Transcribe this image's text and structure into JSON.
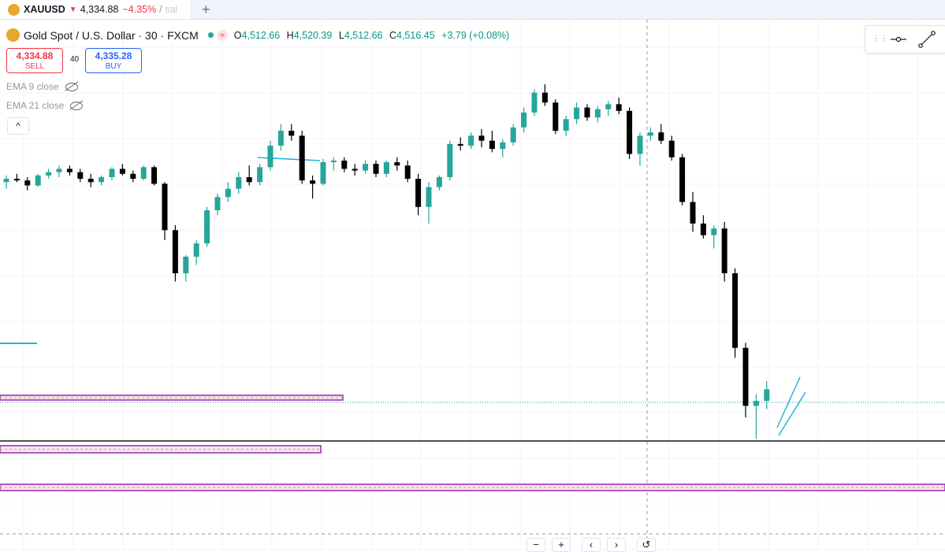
{
  "tab": {
    "symbol": "XAUUSD",
    "direction": "▼",
    "price": "4,334.88",
    "change": "−4.35%",
    "slash": "/",
    "extra": "sal",
    "new_tab": "+"
  },
  "legend": {
    "title": "Gold Spot / U.S. Dollar · 30 · FXCM",
    "status_pill": "≈",
    "open_label": "O",
    "open": "4,512.66",
    "high_label": "H",
    "high": "4,520.39",
    "low_label": "L",
    "low": "4,512.66",
    "close_label": "C",
    "close": "4,516.45",
    "change": "+3.79 (+0.08%)"
  },
  "trade": {
    "sell_price": "4,334.88",
    "sell_label": "SELL",
    "spread": "40",
    "buy_price": "4,335.28",
    "buy_label": "BUY"
  },
  "indicators": [
    {
      "label": "EMA 9 close",
      "icon": "eye-hidden-icon"
    },
    {
      "label": "EMA 21 close",
      "icon": "eye-hidden-icon"
    }
  ],
  "collapse_symbol": "^",
  "navigation": {
    "zoom_out": "−",
    "zoom_in": "+",
    "scroll_left": "‹",
    "scroll_right": "›",
    "reset": "↺"
  },
  "colors": {
    "bull": "#26a69a",
    "bear": "#000000",
    "sell": "#f23645",
    "buy": "#2962ff",
    "zone_border": "#9c27b0",
    "zone_fill": "#f3e5f5",
    "zone_mid": "#ff9800",
    "trendline": "#22b5d8"
  },
  "chart_data": {
    "type": "candlestick",
    "symbol": "XAUUSD",
    "timeframe": "30",
    "candles": [
      [
        4470,
        4478,
        4462,
        4474
      ],
      [
        4474,
        4480,
        4470,
        4472
      ],
      [
        4472,
        4476,
        4460,
        4466
      ],
      [
        4466,
        4480,
        4464,
        4478
      ],
      [
        4478,
        4486,
        4474,
        4482
      ],
      [
        4482,
        4490,
        4476,
        4486
      ],
      [
        4486,
        4490,
        4478,
        4482
      ],
      [
        4482,
        4486,
        4470,
        4474
      ],
      [
        4474,
        4480,
        4464,
        4470
      ],
      [
        4470,
        4478,
        4466,
        4476
      ],
      [
        4476,
        4488,
        4472,
        4486
      ],
      [
        4486,
        4492,
        4478,
        4480
      ],
      [
        4480,
        4484,
        4470,
        4474
      ],
      [
        4474,
        4490,
        4472,
        4488
      ],
      [
        4488,
        4490,
        4466,
        4468
      ],
      [
        4468,
        4470,
        4400,
        4412
      ],
      [
        4412,
        4418,
        4350,
        4360
      ],
      [
        4360,
        4382,
        4350,
        4380
      ],
      [
        4380,
        4400,
        4370,
        4396
      ],
      [
        4396,
        4440,
        4392,
        4436
      ],
      [
        4436,
        4456,
        4430,
        4452
      ],
      [
        4452,
        4470,
        4446,
        4462
      ],
      [
        4462,
        4482,
        4456,
        4476
      ],
      [
        4476,
        4490,
        4466,
        4470
      ],
      [
        4470,
        4492,
        4466,
        4488
      ],
      [
        4488,
        4520,
        4484,
        4514
      ],
      [
        4514,
        4540,
        4508,
        4532
      ],
      [
        4532,
        4540,
        4520,
        4526
      ],
      [
        4526,
        4532,
        4468,
        4472
      ],
      [
        4472,
        4478,
        4450,
        4468
      ],
      [
        4468,
        4498,
        4466,
        4494
      ],
      [
        4494,
        4500,
        4484,
        4496
      ],
      [
        4496,
        4500,
        4482,
        4486
      ],
      [
        4486,
        4492,
        4478,
        4484
      ],
      [
        4484,
        4496,
        4480,
        4492
      ],
      [
        4492,
        4496,
        4476,
        4480
      ],
      [
        4480,
        4496,
        4476,
        4494
      ],
      [
        4494,
        4500,
        4484,
        4490
      ],
      [
        4490,
        4496,
        4470,
        4474
      ],
      [
        4474,
        4480,
        4430,
        4440
      ],
      [
        4440,
        4470,
        4420,
        4464
      ],
      [
        4464,
        4478,
        4460,
        4476
      ],
      [
        4476,
        4520,
        4472,
        4516
      ],
      [
        4516,
        4524,
        4508,
        4514
      ],
      [
        4514,
        4530,
        4510,
        4526
      ],
      [
        4526,
        4534,
        4512,
        4520
      ],
      [
        4520,
        4532,
        4506,
        4510
      ],
      [
        4510,
        4522,
        4500,
        4518
      ],
      [
        4518,
        4540,
        4514,
        4536
      ],
      [
        4536,
        4560,
        4530,
        4554
      ],
      [
        4554,
        4582,
        4550,
        4578
      ],
      [
        4578,
        4588,
        4562,
        4566
      ],
      [
        4566,
        4570,
        4528,
        4532
      ],
      [
        4532,
        4550,
        4526,
        4546
      ],
      [
        4546,
        4566,
        4540,
        4560
      ],
      [
        4560,
        4564,
        4544,
        4548
      ],
      [
        4548,
        4562,
        4542,
        4558
      ],
      [
        4558,
        4568,
        4550,
        4564
      ],
      [
        4564,
        4572,
        4552,
        4556
      ],
      [
        4556,
        4560,
        4498,
        4504
      ],
      [
        4504,
        4530,
        4490,
        4526
      ],
      [
        4526,
        4536,
        4520,
        4530
      ],
      [
        4530,
        4540,
        4516,
        4520
      ],
      [
        4520,
        4526,
        4496,
        4500
      ],
      [
        4500,
        4504,
        4442,
        4446
      ],
      [
        4446,
        4458,
        4410,
        4420
      ],
      [
        4420,
        4430,
        4402,
        4406
      ],
      [
        4406,
        4418,
        4390,
        4414
      ],
      [
        4414,
        4422,
        4350,
        4360
      ],
      [
        4360,
        4366,
        4258,
        4270
      ],
      [
        4270,
        4276,
        4186,
        4200
      ],
      [
        4200,
        4214,
        4160,
        4206
      ],
      [
        4206,
        4230,
        4196,
        4220
      ]
    ]
  }
}
